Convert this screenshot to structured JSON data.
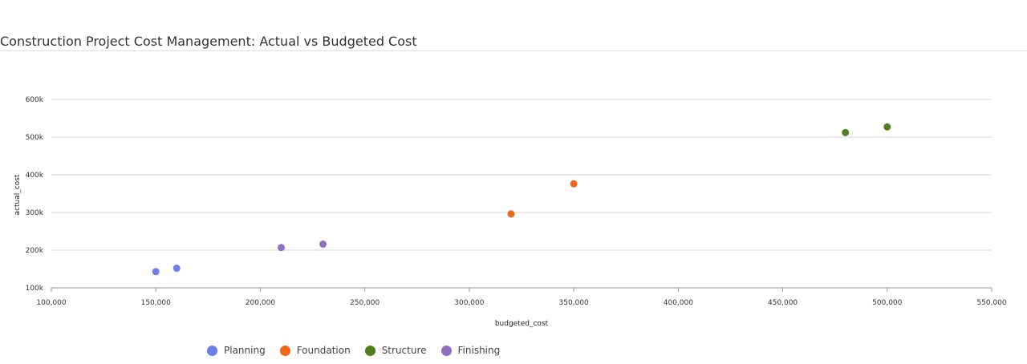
{
  "page": {
    "title": "Construction Project Cost Management: Actual vs Budgeted Cost"
  },
  "chart_data": {
    "type": "scatter",
    "title": "Construction Project Cost Management: Actual vs Budgeted Cost",
    "xlabel": "budgeted_cost",
    "ylabel": "actual_cost",
    "xlim": [
      100000,
      550000
    ],
    "ylim": [
      100000,
      600000
    ],
    "x_ticks": [
      "100,000",
      "150,000",
      "200,000",
      "250,000",
      "300,000",
      "350,000",
      "400,000",
      "450,000",
      "500,000",
      "550,000"
    ],
    "y_ticks": [
      "100k",
      "200k",
      "300k",
      "400k",
      "500k",
      "600k"
    ],
    "grid": true,
    "legend_position": "bottom",
    "series": [
      {
        "name": "Planning",
        "color": "#6B7FE8",
        "points": [
          [
            150000,
            143000
          ],
          [
            160000,
            152000
          ]
        ]
      },
      {
        "name": "Foundation",
        "color": "#F26419",
        "points": [
          [
            320000,
            296000
          ],
          [
            350000,
            376000
          ]
        ]
      },
      {
        "name": "Structure",
        "color": "#4F7F1F",
        "points": [
          [
            480000,
            512000
          ],
          [
            500000,
            527000
          ]
        ]
      },
      {
        "name": "Finishing",
        "color": "#8E6FC1",
        "points": [
          [
            210000,
            207000
          ],
          [
            230000,
            216000
          ]
        ]
      }
    ]
  }
}
